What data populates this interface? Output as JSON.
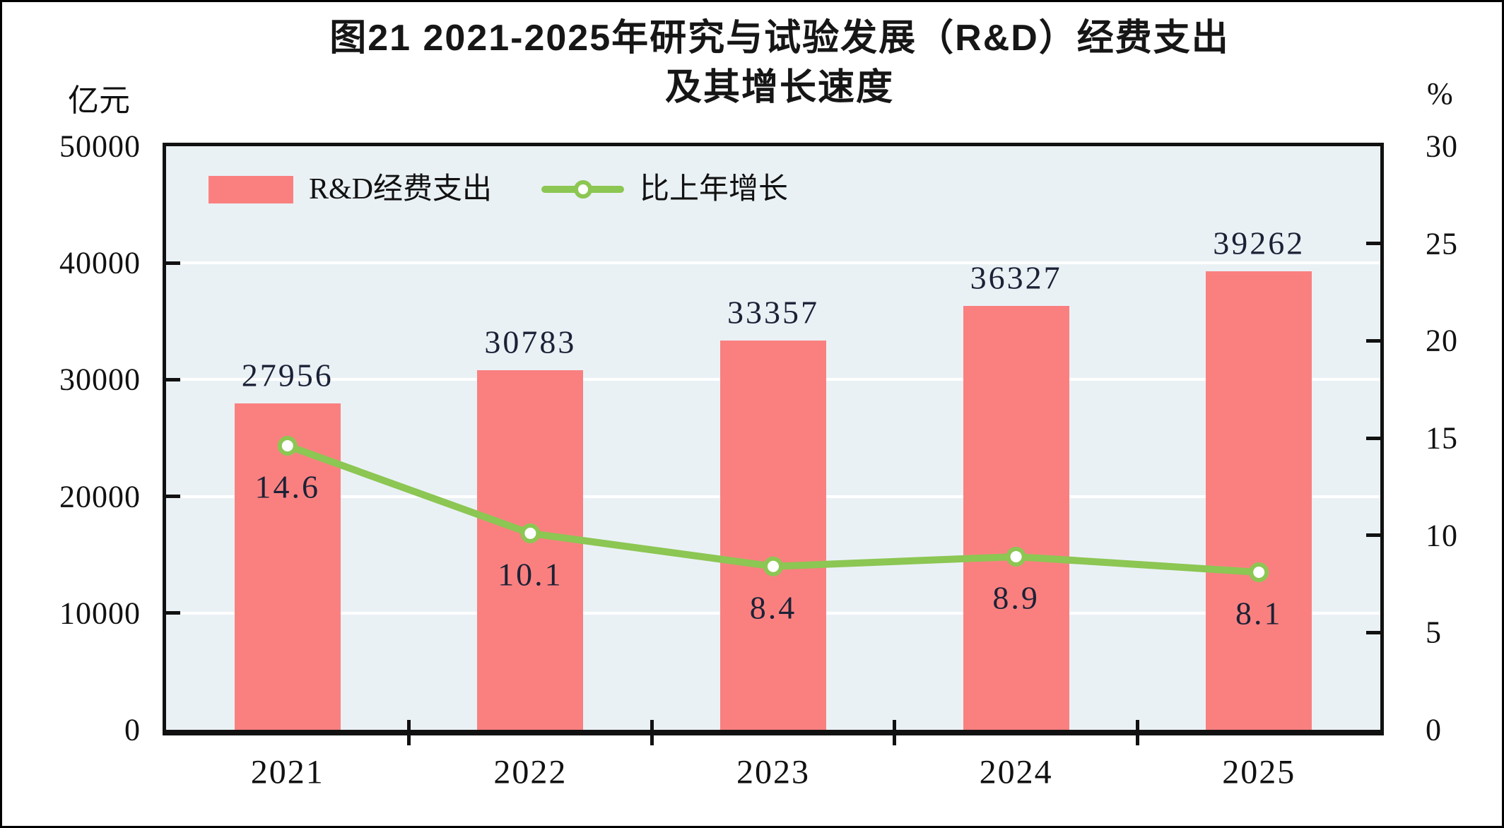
{
  "figure": {
    "background": "#FFFFFF",
    "frame_color": "#000000"
  },
  "chart_data": {
    "type": "bar+line",
    "title": "图21 2021-2025年研究与试验发展（R&D）经费支出及其增长速度",
    "title_lines": [
      "图21  2021-2025年研究与试验发展（R&D）经费支出",
      "及其增长速度"
    ],
    "categories": [
      "2021",
      "2022",
      "2023",
      "2024",
      "2025"
    ],
    "series": [
      {
        "name": "R&D经费支出",
        "type": "bar",
        "axis": "left",
        "unit": "亿元",
        "values": [
          27956,
          30783,
          33357,
          36327,
          39262
        ]
      },
      {
        "name": "比上年增长",
        "type": "line",
        "axis": "right",
        "unit": "%",
        "values": [
          14.6,
          10.1,
          8.4,
          8.9,
          8.1
        ]
      }
    ],
    "left_axis": {
      "label": "亿元",
      "min": 0,
      "max": 50000,
      "ticks": [
        0,
        10000,
        20000,
        30000,
        40000,
        50000
      ]
    },
    "right_axis": {
      "label": "%",
      "min": 0,
      "max": 30,
      "ticks": [
        0,
        5,
        10,
        15,
        20,
        25,
        30
      ]
    },
    "legend_position": "top-left",
    "grid": true,
    "colors": {
      "bar": "#FA8080",
      "line": "#8CC653",
      "marker_fill": "#FFFFFF",
      "plot_background": "#EAF1F5",
      "gridline": "#FFFFFF",
      "axis_frame": "#111111",
      "text": "#111111"
    }
  }
}
